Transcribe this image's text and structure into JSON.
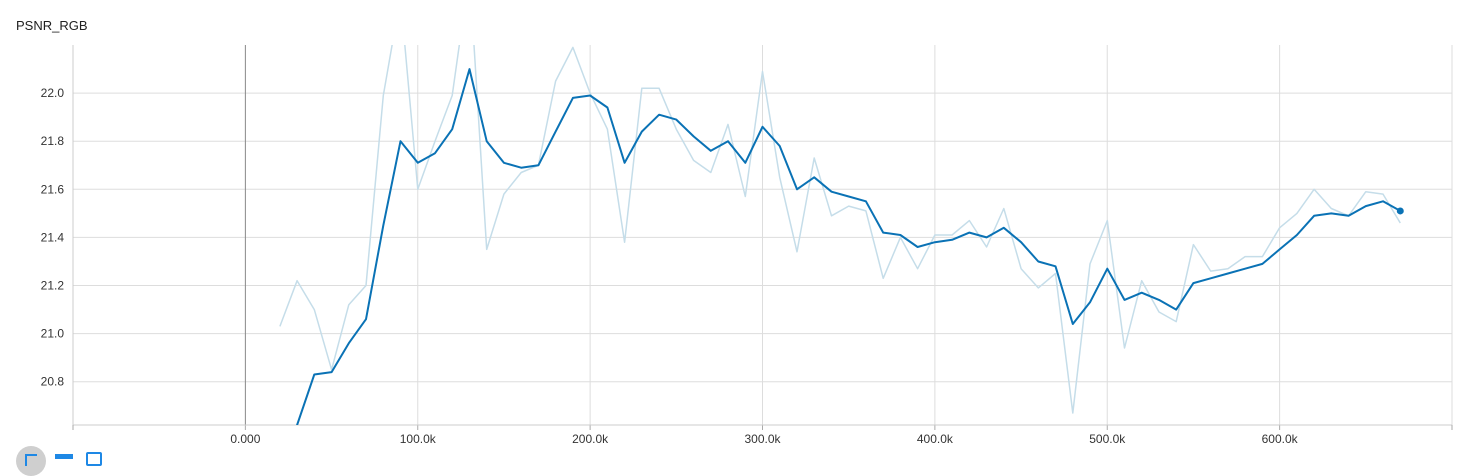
{
  "card": {
    "title": "PSNR_RGB"
  },
  "toolbar": {
    "expand_icon": "fullscreen-icon",
    "data_icon": "list-icon",
    "fit_icon": "fit-domain-icon"
  },
  "chart_data": {
    "type": "line",
    "title": "PSNR_RGB",
    "xlabel": "",
    "ylabel": "",
    "xlim": [
      -100000,
      700000
    ],
    "ylim": [
      20.62,
      22.2
    ],
    "grid": true,
    "x_ticks": [
      0,
      100000,
      200000,
      300000,
      400000,
      500000,
      600000
    ],
    "x_tick_labels": [
      "0.000",
      "100.0k",
      "200.0k",
      "300.0k",
      "400.0k",
      "500.0k",
      "600.0k"
    ],
    "y_ticks": [
      20.8,
      21.0,
      21.2,
      21.4,
      21.6,
      21.8,
      22.0
    ],
    "y_tick_labels": [
      "20.8",
      "21.0",
      "21.2",
      "21.4",
      "21.6",
      "21.8",
      "22.0"
    ],
    "colors": {
      "raw": "#c5dde9",
      "smoothed": "#0a72b5",
      "grid": "#dddddd",
      "zero_axis": "#888888"
    },
    "series": [
      {
        "role": "raw",
        "x": [
          20000,
          30000,
          40000,
          50000,
          60000,
          70000,
          80000,
          90000,
          100000,
          110000,
          120000,
          130000,
          140000,
          150000,
          160000,
          170000,
          180000,
          190000,
          200000,
          210000,
          220000,
          230000,
          240000,
          250000,
          260000,
          270000,
          280000,
          290000,
          300000,
          310000,
          320000,
          330000,
          340000,
          350000,
          360000,
          370000,
          380000,
          390000,
          400000,
          410000,
          420000,
          430000,
          440000,
          450000,
          460000,
          470000,
          480000,
          490000,
          500000,
          510000,
          520000,
          530000,
          540000,
          550000,
          560000,
          570000,
          580000,
          590000,
          600000,
          610000,
          620000,
          630000,
          640000,
          650000,
          660000,
          670000
        ],
        "y": [
          21.03,
          21.22,
          21.1,
          20.85,
          21.12,
          21.2,
          21.99,
          22.4,
          21.6,
          21.8,
          21.99,
          22.5,
          21.35,
          21.58,
          21.67,
          21.7,
          22.05,
          22.19,
          22.0,
          21.85,
          21.38,
          22.02,
          22.02,
          21.85,
          21.72,
          21.67,
          21.87,
          21.57,
          22.09,
          21.65,
          21.34,
          21.73,
          21.49,
          21.53,
          21.51,
          21.23,
          21.4,
          21.27,
          21.41,
          21.41,
          21.47,
          21.36,
          21.52,
          21.27,
          21.19,
          21.25,
          20.67,
          21.29,
          21.47,
          20.94,
          21.22,
          21.09,
          21.05,
          21.37,
          21.26,
          21.27,
          21.32,
          21.32,
          21.44,
          21.5,
          21.6,
          21.52,
          21.49,
          21.59,
          21.58,
          21.46
        ]
      },
      {
        "role": "smoothed",
        "x": [
          20000,
          30000,
          40000,
          50000,
          60000,
          70000,
          80000,
          90000,
          100000,
          110000,
          120000,
          130000,
          140000,
          150000,
          160000,
          170000,
          180000,
          190000,
          200000,
          210000,
          220000,
          230000,
          240000,
          250000,
          260000,
          270000,
          280000,
          290000,
          300000,
          310000,
          320000,
          330000,
          340000,
          350000,
          360000,
          370000,
          380000,
          390000,
          400000,
          410000,
          420000,
          430000,
          440000,
          450000,
          460000,
          470000,
          480000,
          490000,
          500000,
          510000,
          520000,
          530000,
          540000,
          550000,
          560000,
          570000,
          580000,
          590000,
          600000,
          610000,
          620000,
          630000,
          640000,
          650000,
          660000,
          670000
        ],
        "y": [
          20.5,
          20.62,
          20.83,
          20.84,
          20.96,
          21.06,
          21.45,
          21.8,
          21.71,
          21.75,
          21.85,
          22.1,
          21.8,
          21.71,
          21.69,
          21.7,
          21.84,
          21.98,
          21.99,
          21.94,
          21.71,
          21.84,
          21.91,
          21.89,
          21.82,
          21.76,
          21.8,
          21.71,
          21.86,
          21.78,
          21.6,
          21.65,
          21.59,
          21.57,
          21.55,
          21.42,
          21.41,
          21.36,
          21.38,
          21.39,
          21.42,
          21.4,
          21.44,
          21.38,
          21.3,
          21.28,
          21.04,
          21.13,
          21.27,
          21.14,
          21.17,
          21.14,
          21.1,
          21.21,
          21.23,
          21.25,
          21.27,
          21.29,
          21.35,
          21.41,
          21.49,
          21.5,
          21.49,
          21.53,
          21.55,
          21.51
        ]
      }
    ]
  }
}
